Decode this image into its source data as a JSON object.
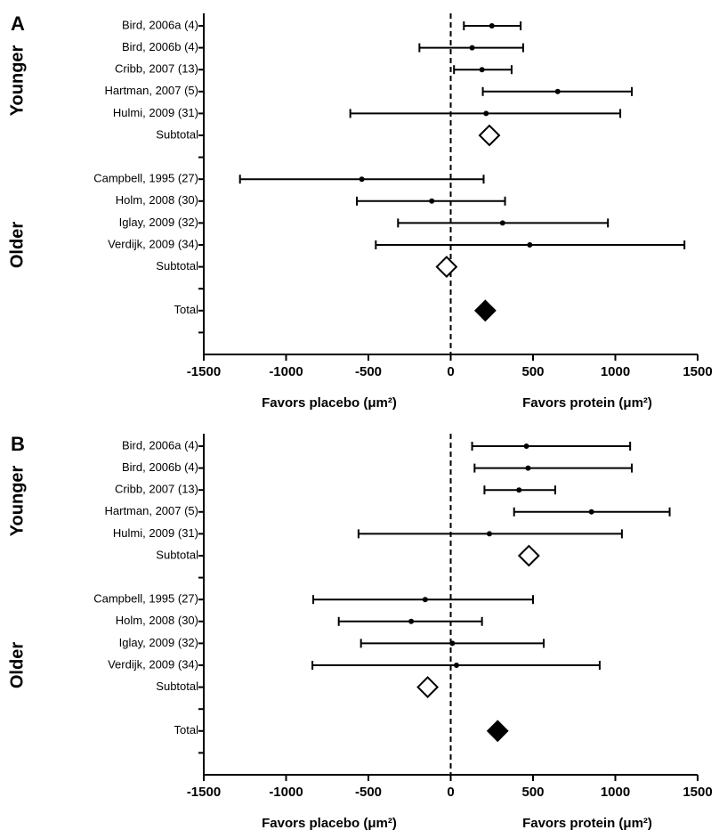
{
  "chart_data": [
    {
      "type": "forest",
      "panel": "A",
      "categories": [
        "Bird, 2006a (4)",
        "Bird, 2006b (4)",
        "Cribb, 2007 (13)",
        "Hartman, 2007 (5)",
        "Hulmi, 2009 (31)",
        "Subtotal",
        null,
        "Campbell, 1995 (27)",
        "Holm, 2008 (30)",
        "Iglay, 2009 (32)",
        "Verdijk, 2009 (34)",
        "Subtotal",
        null,
        "Total",
        null
      ],
      "values": [
        250,
        130,
        190,
        650,
        215,
        235,
        null,
        -540,
        -115,
        315,
        480,
        -25,
        null,
        210,
        null
      ],
      "lower": [
        80,
        -190,
        20,
        195,
        -610,
        null,
        null,
        -1280,
        -570,
        -320,
        -455,
        null,
        null,
        null,
        null
      ],
      "upper": [
        425,
        440,
        370,
        1100,
        1030,
        null,
        null,
        200,
        330,
        955,
        1420,
        null,
        null,
        null,
        null
      ],
      "markers": [
        "dot",
        "dot",
        "dot",
        "dot",
        "dot",
        "open-diamond",
        null,
        "dot",
        "dot",
        "dot",
        "dot",
        "open-diamond",
        null,
        "filled-diamond",
        null
      ],
      "groups": [
        {
          "label": "Younger",
          "rows": [
            0,
            5
          ]
        },
        {
          "label": "Older",
          "rows": [
            7,
            13
          ]
        }
      ],
      "xlim": [
        -1500,
        1500
      ],
      "xticks": [
        -1500,
        -1000,
        -500,
        0,
        500,
        1000,
        1500
      ],
      "reference_line": 0,
      "xlabel_left": "Favors placebo (μm²)",
      "xlabel_right": "Favors protein (μm²)"
    },
    {
      "type": "forest",
      "panel": "B",
      "categories": [
        "Bird, 2006a (4)",
        "Bird, 2006b (4)",
        "Cribb, 2007 (13)",
        "Hartman, 2007 (5)",
        "Hulmi, 2009 (31)",
        "Subtotal",
        null,
        "Campbell, 1995 (27)",
        "Holm, 2008 (30)",
        "Iglay, 2009 (32)",
        "Verdijk, 2009 (34)",
        "Subtotal",
        null,
        "Total",
        null
      ],
      "values": [
        460,
        470,
        415,
        855,
        235,
        475,
        null,
        -155,
        -240,
        10,
        35,
        -140,
        null,
        285,
        null
      ],
      "lower": [
        130,
        145,
        205,
        385,
        -560,
        null,
        null,
        -835,
        -680,
        -545,
        -840,
        null,
        null,
        null,
        null
      ],
      "upper": [
        1090,
        1100,
        635,
        1330,
        1040,
        null,
        null,
        500,
        190,
        565,
        905,
        null,
        null,
        null,
        null
      ],
      "markers": [
        "dot",
        "dot",
        "dot",
        "dot",
        "dot",
        "open-diamond",
        null,
        "dot",
        "dot",
        "dot",
        "dot",
        "open-diamond",
        null,
        "filled-diamond",
        null
      ],
      "groups": [
        {
          "label": "Younger",
          "rows": [
            0,
            5
          ]
        },
        {
          "label": "Older",
          "rows": [
            7,
            13
          ]
        }
      ],
      "xlim": [
        -1500,
        1500
      ],
      "xticks": [
        -1500,
        -1000,
        -500,
        0,
        500,
        1000,
        1500
      ],
      "reference_line": 0,
      "xlabel_left": "Favors placebo (μm²)",
      "xlabel_right": "Favors protein (μm²)"
    }
  ]
}
